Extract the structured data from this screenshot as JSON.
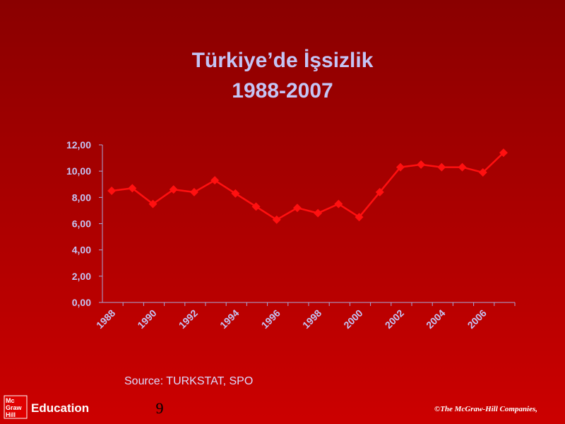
{
  "chart_data": {
    "type": "line",
    "title": "Türkiye’de İşsizlik",
    "subtitle": "1988-2007",
    "categories": [
      "1988",
      null,
      "1990",
      null,
      "1992",
      null,
      "1994",
      null,
      "1996",
      null,
      "1998",
      null,
      "2000",
      null,
      "2002",
      null,
      "2004",
      null,
      "2006",
      null
    ],
    "values": [
      8.5,
      8.7,
      7.5,
      8.6,
      8.4,
      9.3,
      8.3,
      7.3,
      6.3,
      7.2,
      6.8,
      7.5,
      6.5,
      8.4,
      10.3,
      10.5,
      10.3,
      10.3,
      9.9,
      11.4
    ],
    "color": "#ff1010",
    "ylim": [
      0,
      12
    ],
    "yticks": [
      {
        "value": 0,
        "label": "0,00"
      },
      {
        "value": 2,
        "label": "2,00"
      },
      {
        "value": 4,
        "label": "4,00"
      },
      {
        "value": 6,
        "label": "6,00"
      },
      {
        "value": 8,
        "label": "8,00"
      },
      {
        "value": 10,
        "label": "10,00"
      },
      {
        "value": 12,
        "label": "12,00"
      }
    ],
    "grid": false
  },
  "footer": {
    "source": "Source: TURKSTAT, SPO",
    "page": "9",
    "logo": [
      "Mc",
      "Graw",
      "Hill"
    ],
    "brand": "Education",
    "copyright": "©The McGraw-Hill Companies, "
  }
}
